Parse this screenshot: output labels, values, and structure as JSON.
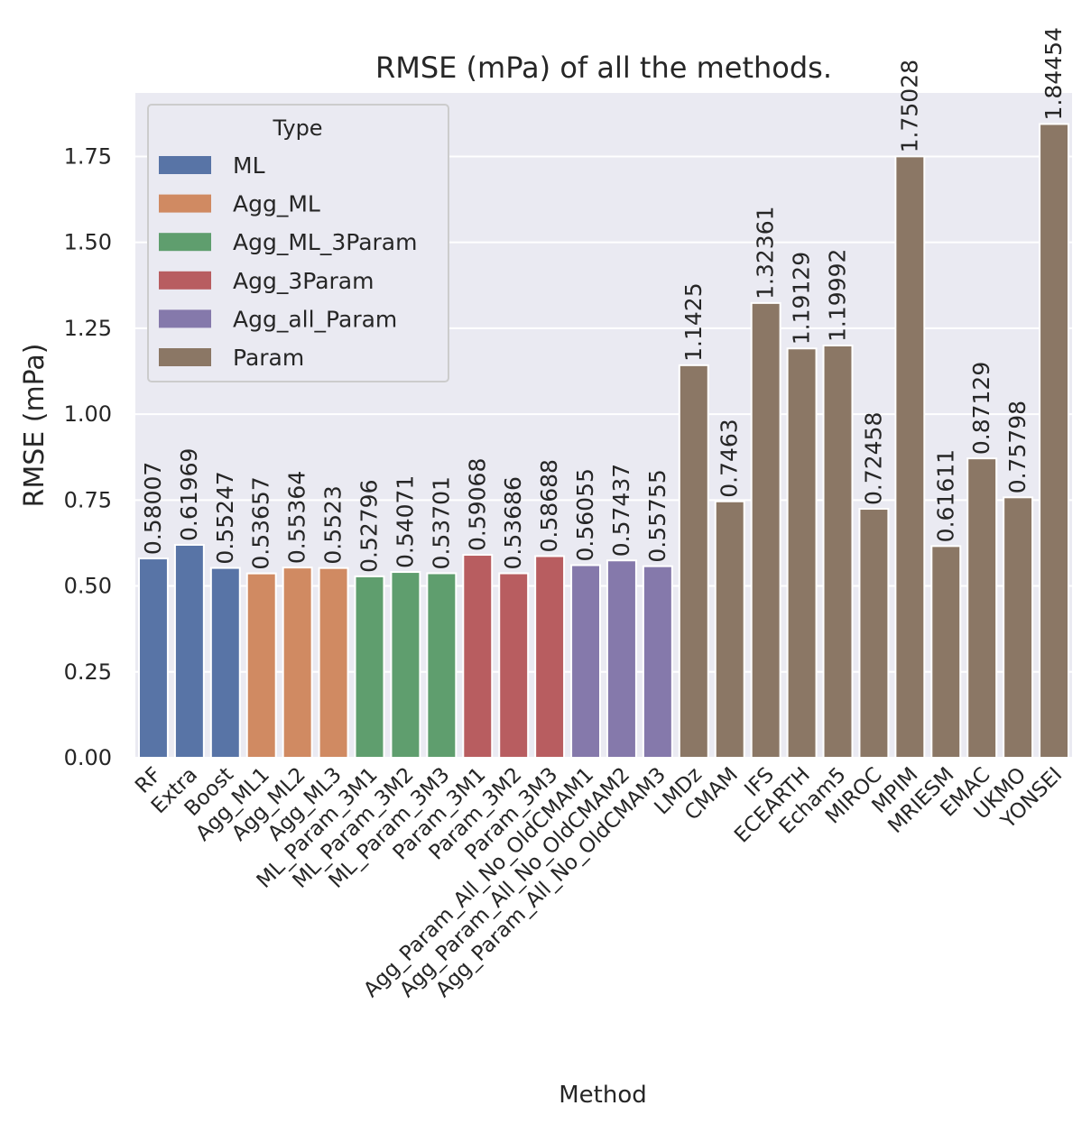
{
  "chart_data": {
    "type": "bar",
    "title": "RMSE (mPa) of all the methods.",
    "xlabel": "Method",
    "ylabel": "RMSE (mPa)",
    "ylim": [
      0,
      1.935
    ],
    "yticks": [
      "0.00",
      "0.25",
      "0.50",
      "0.75",
      "1.00",
      "1.25",
      "1.50",
      "1.75"
    ],
    "ytick_values": [
      0,
      0.25,
      0.5,
      0.75,
      1.0,
      1.25,
      1.5,
      1.75
    ],
    "grid": true,
    "legend_position": "top-left",
    "legend": {
      "title": "Type",
      "entries": [
        {
          "name": "ML",
          "color": "#5874a6"
        },
        {
          "name": "Agg_ML",
          "color": "#d08a62"
        },
        {
          "name": "Agg_ML_3Param",
          "color": "#5f9e6e"
        },
        {
          "name": "Agg_3Param",
          "color": "#b85d60"
        },
        {
          "name": "Agg_all_Param",
          "color": "#8579ab"
        },
        {
          "name": "Param",
          "color": "#8b7765"
        }
      ]
    },
    "categories": [
      "RF",
      "Extra",
      "Boost",
      "Agg_ML1",
      "Agg_ML2",
      "Agg_ML3",
      "ML_Param_3M1",
      "ML_Param_3M2",
      "ML_Param_3M3",
      "Param_3M1",
      "Param_3M2",
      "Param_3M3",
      "Agg_Param_All_No_OldCMAM1",
      "Agg_Param_All_No_OldCMAM2",
      "Agg_Param_All_No_OldCMAM3",
      "LMDz",
      "CMAM",
      "IFS",
      "ECEARTH",
      "Echam5",
      "MIROC",
      "MPIM",
      "MRIESM",
      "EMAC",
      "UKMO",
      "YONSEI"
    ],
    "values": [
      0.58007,
      0.61969,
      0.55247,
      0.53657,
      0.55364,
      0.5523,
      0.52796,
      0.54071,
      0.53701,
      0.59068,
      0.53686,
      0.58688,
      0.56055,
      0.57437,
      0.55755,
      1.1425,
      0.7463,
      1.32361,
      1.19129,
      1.19992,
      0.72458,
      1.75028,
      0.61611,
      0.87129,
      0.75798,
      1.84454
    ],
    "value_labels": [
      "0.58007",
      "0.61969",
      "0.55247",
      "0.53657",
      "0.55364",
      "0.5523",
      "0.52796",
      "0.54071",
      "0.53701",
      "0.59068",
      "0.53686",
      "0.58688",
      "0.56055",
      "0.57437",
      "0.55755",
      "1.1425",
      "0.7463",
      "1.32361",
      "1.19129",
      "1.19992",
      "0.72458",
      "1.75028",
      "0.61611",
      "0.87129",
      "0.75798",
      "1.84454"
    ],
    "types": [
      "ML",
      "ML",
      "ML",
      "Agg_ML",
      "Agg_ML",
      "Agg_ML",
      "Agg_ML_3Param",
      "Agg_ML_3Param",
      "Agg_ML_3Param",
      "Agg_3Param",
      "Agg_3Param",
      "Agg_3Param",
      "Agg_all_Param",
      "Agg_all_Param",
      "Agg_all_Param",
      "Param",
      "Param",
      "Param",
      "Param",
      "Param",
      "Param",
      "Param",
      "Param",
      "Param",
      "Param",
      "Param"
    ]
  }
}
